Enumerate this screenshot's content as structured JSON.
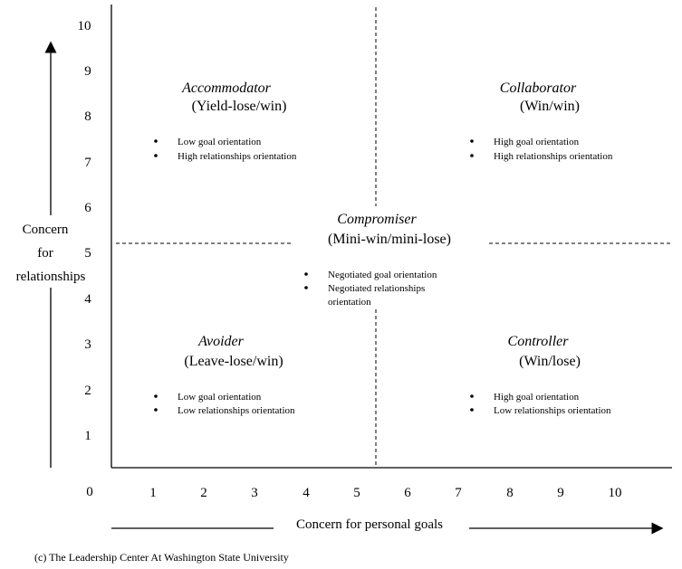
{
  "diagram": {
    "y_axis": {
      "label_lines": [
        "Concern",
        "for",
        "relationships"
      ],
      "ticks": [
        "1",
        "2",
        "3",
        "4",
        "5",
        "6",
        "7",
        "8",
        "9",
        "10"
      ]
    },
    "x_axis": {
      "label": "Concern for personal goals",
      "ticks": [
        "1",
        "2",
        "3",
        "4",
        "5",
        "6",
        "7",
        "8",
        "9",
        "10"
      ]
    },
    "origin_label": "0",
    "quadrants": {
      "accommodator": {
        "title": "Accommodator",
        "subtitle": "(Yield-lose/win)",
        "bullets": [
          "Low goal orientation",
          "High relationships orientation"
        ]
      },
      "collaborator": {
        "title": "Collaborator",
        "subtitle": "(Win/win)",
        "bullets": [
          "High goal orientation",
          "High relationships orientation"
        ]
      },
      "compromiser": {
        "title": "Compromiser",
        "subtitle": "(Mini-win/mini-lose)",
        "bullets": [
          "Negotiated goal orientation",
          "Negotiated relationships",
          "orientation"
        ]
      },
      "avoider": {
        "title": "Avoider",
        "subtitle": "(Leave-lose/win)",
        "bullets": [
          "Low goal orientation",
          "Low relationships orientation"
        ]
      },
      "controller": {
        "title": "Controller",
        "subtitle": "(Win/lose)",
        "bullets": [
          "High goal orientation",
          "Low relationships orientation"
        ]
      }
    },
    "credit": "(c) The Leadership Center At Washington State University"
  }
}
